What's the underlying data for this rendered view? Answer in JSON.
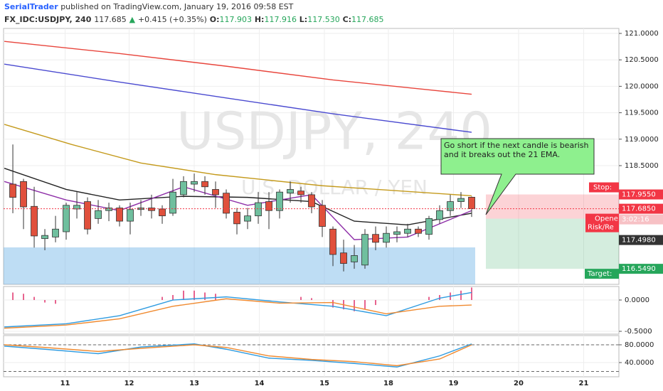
{
  "header": {
    "author": "SerialTrader",
    "published": "published on TradingView.com, January 19, 2016 09:58 EST",
    "symbol": "FX_IDC:USDJPY, 240",
    "last": "117.685",
    "arrow": "▲",
    "change": "+0.415 (+0.35%)",
    "o_label": "O:",
    "o": "117.903",
    "h_label": "H:",
    "h": "117.916",
    "l_label": "L:",
    "l": "117.530",
    "c_label": "C:",
    "c": "117.685"
  },
  "chart_data": [
    {
      "type": "candlestick",
      "watermark": "USDJPY, 240",
      "watermark_sub": "U.S. DOLLAR / YEN",
      "xlim": [
        -0.87,
        56.8
      ],
      "xticks": [
        {
          "value": 4.9,
          "label": "11"
        },
        {
          "value": 10.9,
          "label": "12"
        },
        {
          "value": 17.0,
          "label": "13"
        },
        {
          "value": 23.1,
          "label": "14"
        },
        {
          "value": 29.2,
          "label": "15"
        },
        {
          "value": 35.2,
          "label": "18"
        },
        {
          "value": 41.3,
          "label": "19"
        },
        {
          "value": 47.4,
          "label": "20"
        },
        {
          "value": 53.5,
          "label": "21"
        }
      ],
      "ylim": [
        116.255,
        121.094
      ],
      "yticks": [
        {
          "value": 121.0,
          "label": "121.0000"
        },
        {
          "value": 120.5,
          "label": "120.5000"
        },
        {
          "value": 120.0,
          "label": "120.0000"
        },
        {
          "value": 119.5,
          "label": "119.5000"
        },
        {
          "value": 119.0,
          "label": "119.0000"
        },
        {
          "value": 118.5,
          "label": "118.5000"
        }
      ],
      "grid": true,
      "up_color": "#6fbf9e",
      "down_color": "#e0503c",
      "candles": {
        "open": [
          118.15,
          118.2,
          117.73,
          117.12,
          117.15,
          117.25,
          117.68,
          117.82,
          117.5,
          117.65,
          117.7,
          117.45,
          117.67,
          117.7,
          117.68,
          117.6,
          117.95,
          118.15,
          118.2,
          118.05,
          117.98,
          117.62,
          117.45,
          117.55,
          117.82,
          117.65,
          117.98,
          118.02,
          117.95,
          117.75,
          117.3,
          116.85,
          116.68,
          116.62,
          117.2,
          117.05,
          117.2,
          117.22,
          117.3,
          117.2,
          117.48,
          117.65,
          117.82,
          117.903
        ],
        "high": [
          118.9,
          118.25,
          118.1,
          117.3,
          117.55,
          117.8,
          118.0,
          117.9,
          117.85,
          117.8,
          117.75,
          117.8,
          117.85,
          117.95,
          117.75,
          118.25,
          118.3,
          118.35,
          118.3,
          118.2,
          118.05,
          117.7,
          117.7,
          118.0,
          118.0,
          118.05,
          118.2,
          118.1,
          118.0,
          117.85,
          117.35,
          117.1,
          117.0,
          117.3,
          117.35,
          117.35,
          117.35,
          117.4,
          117.35,
          117.55,
          117.75,
          117.95,
          118.0,
          117.916
        ],
        "low": [
          117.6,
          117.3,
          116.95,
          116.9,
          117.05,
          117.1,
          117.5,
          117.2,
          117.4,
          117.45,
          117.35,
          117.2,
          117.55,
          117.5,
          117.4,
          117.55,
          117.9,
          118.0,
          117.95,
          117.7,
          117.5,
          117.2,
          117.3,
          117.4,
          117.3,
          117.5,
          117.8,
          117.8,
          117.6,
          117.15,
          116.6,
          116.5,
          116.55,
          116.55,
          116.9,
          116.95,
          117.05,
          117.15,
          117.15,
          117.1,
          117.4,
          117.55,
          117.7,
          117.53
        ],
        "close": [
          117.9,
          117.72,
          117.17,
          117.18,
          117.3,
          117.75,
          117.75,
          117.3,
          117.65,
          117.7,
          117.45,
          117.67,
          117.7,
          117.65,
          117.55,
          118.0,
          118.2,
          118.2,
          118.1,
          117.95,
          117.6,
          117.4,
          117.55,
          117.8,
          117.65,
          118.0,
          118.05,
          117.95,
          117.72,
          117.35,
          116.82,
          116.65,
          116.8,
          117.2,
          117.05,
          117.22,
          117.25,
          117.3,
          117.22,
          117.5,
          117.65,
          117.82,
          117.88,
          117.685
        ]
      },
      "series": [
        {
          "color": "#e8453c",
          "x": [
            -0.8,
            10,
            20,
            30,
            43
          ],
          "values": [
            120.85,
            120.62,
            120.38,
            120.12,
            119.85
          ]
        },
        {
          "color": "#4a4ad0",
          "x": [
            -0.8,
            10,
            20,
            30,
            43
          ],
          "values": [
            120.42,
            120.08,
            119.78,
            119.48,
            119.13
          ]
        },
        {
          "color": "#c49a1c",
          "x": [
            -0.8,
            5.5,
            12,
            19,
            29,
            43
          ],
          "values": [
            119.28,
            118.9,
            118.55,
            118.33,
            118.12,
            117.93
          ]
        },
        {
          "color": "#222222",
          "x": [
            -0.8,
            5,
            10,
            16,
            22,
            28,
            32,
            37,
            43
          ],
          "values": [
            118.45,
            118.05,
            117.85,
            117.92,
            117.9,
            117.82,
            117.45,
            117.38,
            117.6
          ]
        },
        {
          "color": "#8e2fa8",
          "x": [
            -0.8,
            5,
            10,
            16,
            22,
            28,
            32,
            37,
            43
          ],
          "values": [
            118.2,
            117.85,
            117.65,
            118.1,
            117.75,
            117.95,
            117.1,
            117.15,
            117.65
          ]
        }
      ],
      "current": {
        "value": 117.685,
        "label": "117.6850",
        "color": "#f23645"
      },
      "position": {
        "stop": {
          "value": 117.955,
          "label": "117.9550",
          "caption": "Stop:"
        },
        "target": {
          "value": 116.549,
          "label": "116.5490",
          "caption": "Target:"
        },
        "opened": "Opene",
        "risk": "Risk/Re",
        "countdown": "3:02:16"
      },
      "bid": {
        "value": 117.498,
        "label": "117.4980"
      },
      "annotation": "Go short if the next candle is bearish and it breaks out the 21 EMA."
    },
    {
      "type": "macd",
      "ylim": [
        -0.545,
        0.216
      ],
      "yticks": [
        {
          "value": 0,
          "label": "0.0000"
        },
        {
          "value": -0.5,
          "label": "-0.5000"
        }
      ],
      "grid": true,
      "series": [
        {
          "color": "#2e9be0",
          "x": [
            -0.8,
            5,
            10,
            15,
            20,
            25,
            30,
            35,
            40,
            43
          ],
          "values": [
            -0.43,
            -0.38,
            -0.25,
            0.0,
            0.05,
            -0.03,
            -0.1,
            -0.25,
            0.03,
            0.12
          ]
        },
        {
          "color": "#f08a30",
          "x": [
            -0.8,
            5,
            10,
            15,
            20,
            25,
            30,
            35,
            40,
            43
          ],
          "values": [
            -0.45,
            -0.4,
            -0.3,
            -0.1,
            0.02,
            -0.05,
            -0.04,
            -0.22,
            -0.1,
            -0.08
          ]
        }
      ],
      "histogram": {
        "color": "#e0306a",
        "x": [
          0,
          1,
          2,
          3,
          4,
          14,
          15,
          16,
          17,
          18,
          19,
          27,
          28,
          30,
          31,
          32,
          33,
          34,
          39,
          40,
          41,
          42,
          43
        ],
        "values": [
          0.12,
          0.1,
          0.05,
          -0.04,
          -0.06,
          0.05,
          0.08,
          0.15,
          0.15,
          0.12,
          0.1,
          0.05,
          0.03,
          -0.12,
          -0.15,
          -0.18,
          -0.15,
          -0.08,
          0.05,
          0.08,
          0.12,
          0.15,
          0.2
        ]
      }
    },
    {
      "type": "line",
      "ylim": [
        8,
        100.8
      ],
      "yticks": [
        {
          "value": 80,
          "label": "80.0000"
        },
        {
          "value": 40,
          "label": "40.0000"
        }
      ],
      "grid": true,
      "levels": [
        80,
        20
      ],
      "series": [
        {
          "color": "#2e9be0",
          "x": [
            -0.8,
            3,
            8,
            12,
            17,
            20,
            24,
            28,
            32,
            36,
            40,
            43
          ],
          "values": [
            77,
            70,
            60,
            75,
            82,
            70,
            50,
            45,
            38,
            30,
            55,
            82
          ]
        },
        {
          "color": "#f08a30",
          "x": [
            -0.8,
            3,
            8,
            12,
            17,
            20,
            24,
            28,
            32,
            36,
            40,
            43
          ],
          "values": [
            80,
            74,
            65,
            72,
            80,
            74,
            55,
            47,
            42,
            33,
            48,
            80
          ]
        }
      ]
    }
  ]
}
